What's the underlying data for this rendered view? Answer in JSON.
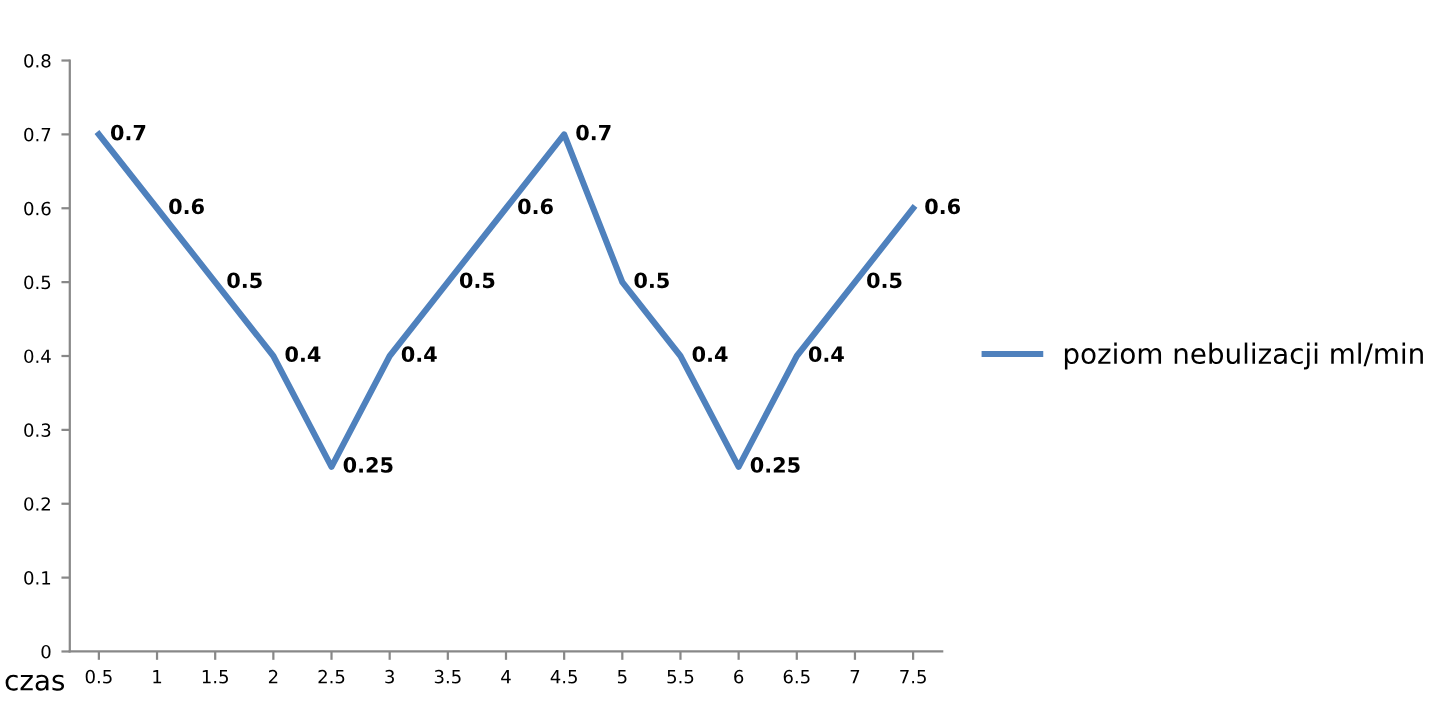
{
  "chart_data": {
    "type": "line",
    "xlabel": "czas",
    "categories": [
      "0.5",
      "1",
      "1.5",
      "2",
      "2.5",
      "3",
      "3.5",
      "4",
      "4.5",
      "5",
      "5.5",
      "6",
      "6.5",
      "7",
      "7.5"
    ],
    "series": [
      {
        "name": "poziom nebulizacji ml/min",
        "color": "#4f81bd",
        "values": [
          0.7,
          0.6,
          0.5,
          0.4,
          0.25,
          0.4,
          0.5,
          0.6,
          0.7,
          0.5,
          0.4,
          0.25,
          0.4,
          0.5,
          0.6
        ]
      }
    ],
    "ylim": [
      0,
      0.8
    ],
    "yticks": [
      0,
      0.1,
      0.2,
      0.3,
      0.4,
      0.5,
      0.6,
      0.7,
      0.8
    ],
    "data_labels": true,
    "legend": "right",
    "grid": false,
    "marker": "none",
    "line_style": "solid"
  }
}
